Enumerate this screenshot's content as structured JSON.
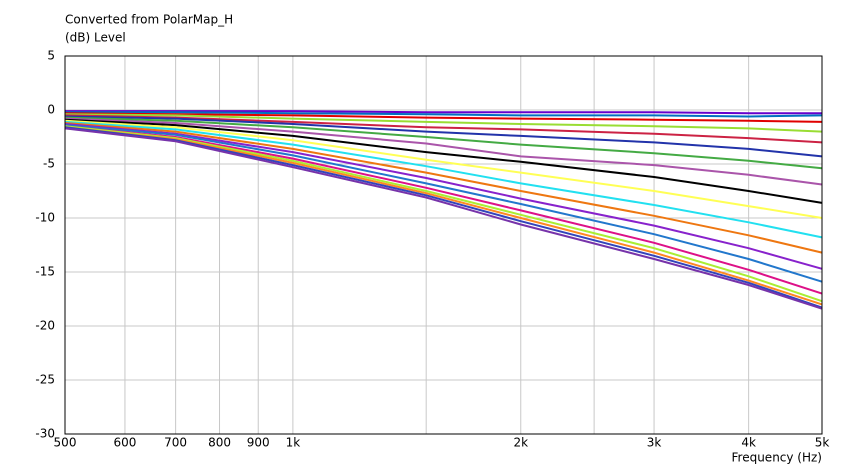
{
  "chart_data": {
    "type": "line",
    "title": "Converted from PolarMap_H",
    "y_label": "(dB)  Level",
    "x_label": "Frequency  (Hz)",
    "x_scale": "log",
    "grid": true,
    "xlim": [
      500,
      5000
    ],
    "ylim": [
      -30,
      5
    ],
    "xticks": [
      500,
      600,
      700,
      800,
      900,
      {
        "value": 1000,
        "label": "1k"
      },
      {
        "value": 2000,
        "label": "2k"
      },
      {
        "value": 3000,
        "label": "3k"
      },
      {
        "value": 4000,
        "label": "4k"
      },
      {
        "value": 5000,
        "label": "5k"
      }
    ],
    "x_minor_grid": [
      1500,
      2500
    ],
    "yticks": [
      5,
      0,
      -5,
      -10,
      -15,
      -20,
      -25,
      -30
    ],
    "x": [
      500,
      700,
      1000,
      1500,
      2000,
      3000,
      4000,
      5000
    ],
    "series": [
      {
        "color": "#6600cc",
        "values": [
          -0.1,
          -0.1,
          -0.1,
          -0.2,
          -0.2,
          -0.2,
          -0.3,
          -0.3
        ]
      },
      {
        "color": "#0070c0",
        "values": [
          -0.2,
          -0.2,
          -0.3,
          -0.4,
          -0.5,
          -0.5,
          -0.6,
          -0.5
        ]
      },
      {
        "color": "#e00000",
        "values": [
          -0.3,
          -0.4,
          -0.5,
          -0.7,
          -0.8,
          -0.9,
          -1.0,
          -1.1
        ]
      },
      {
        "color": "#99dd33",
        "values": [
          -0.4,
          -0.5,
          -0.8,
          -1.1,
          -1.3,
          -1.5,
          -1.7,
          -2.0
        ]
      },
      {
        "color": "#cc2244",
        "values": [
          -0.5,
          -0.7,
          -1.1,
          -1.6,
          -1.8,
          -2.2,
          -2.6,
          -3.0
        ]
      },
      {
        "color": "#2233aa",
        "values": [
          -0.6,
          -0.8,
          -1.3,
          -2.0,
          -2.4,
          -3.0,
          -3.6,
          -4.3
        ]
      },
      {
        "color": "#44aa44",
        "values": [
          -0.7,
          -1.0,
          -1.6,
          -2.5,
          -3.2,
          -4.0,
          -4.7,
          -5.4
        ]
      },
      {
        "color": "#aa55aa",
        "values": [
          -0.8,
          -1.2,
          -2.0,
          -3.1,
          -4.3,
          -5.1,
          -6.0,
          -6.9
        ]
      },
      {
        "color": "#000000",
        "values": [
          -0.9,
          -1.4,
          -2.4,
          -3.9,
          -4.8,
          -6.2,
          -7.5,
          -8.6
        ]
      },
      {
        "color": "#ffff55",
        "values": [
          -1.0,
          -1.6,
          -2.8,
          -4.6,
          -5.8,
          -7.5,
          -8.9,
          -10.0
        ]
      },
      {
        "color": "#22e0f0",
        "values": [
          -1.1,
          -1.8,
          -3.2,
          -5.2,
          -6.8,
          -8.8,
          -10.4,
          -11.8
        ]
      },
      {
        "color": "#ee7711",
        "values": [
          -1.2,
          -2.0,
          -3.6,
          -5.8,
          -7.5,
          -9.8,
          -11.6,
          -13.2
        ]
      },
      {
        "color": "#8822cc",
        "values": [
          -1.3,
          -2.2,
          -3.9,
          -6.3,
          -8.2,
          -10.7,
          -12.8,
          -14.7
        ]
      },
      {
        "color": "#2277cc",
        "values": [
          -1.4,
          -2.3,
          -4.2,
          -6.8,
          -8.7,
          -11.5,
          -13.8,
          -15.9
        ]
      },
      {
        "color": "#dd1188",
        "values": [
          -1.5,
          -2.5,
          -4.5,
          -7.2,
          -9.3,
          -12.3,
          -14.8,
          -17.0
        ]
      },
      {
        "color": "#aaee33",
        "values": [
          -1.5,
          -2.6,
          -4.7,
          -7.5,
          -9.7,
          -12.8,
          -15.4,
          -17.7
        ]
      },
      {
        "color": "#ff8822",
        "values": [
          -1.6,
          -2.7,
          -4.9,
          -7.7,
          -10.0,
          -13.2,
          -15.8,
          -18.0
        ]
      },
      {
        "color": "#3344bb",
        "values": [
          -1.6,
          -2.8,
          -5.1,
          -7.9,
          -10.3,
          -13.5,
          -16.0,
          -18.3
        ]
      },
      {
        "color": "#7733aa",
        "values": [
          -1.7,
          -2.9,
          -5.3,
          -8.1,
          -10.6,
          -13.8,
          -16.2,
          -18.4
        ]
      }
    ]
  }
}
